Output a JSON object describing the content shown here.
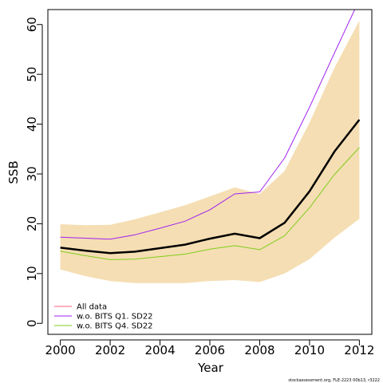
{
  "chart_data": {
    "type": "line",
    "xlabel": "Year",
    "ylabel": "SSB",
    "xlim": [
      1999.5,
      2012.5
    ],
    "ylim": [
      -2.2,
      63
    ],
    "x_ticks": [
      2000,
      2002,
      2004,
      2006,
      2008,
      2010,
      2012
    ],
    "y_ticks": [
      0,
      10,
      20,
      30,
      40,
      50,
      60
    ],
    "x": [
      2000,
      2001,
      2002,
      2003,
      2004,
      2005,
      2006,
      2007,
      2008,
      2009,
      2010,
      2011,
      2012
    ],
    "confidence_band": {
      "lower": [
        10.8,
        9.5,
        8.5,
        8.1,
        8.1,
        8.1,
        8.5,
        8.7,
        8.3,
        10.0,
        12.9,
        17.2,
        21.0
      ],
      "upper": [
        19.9,
        19.7,
        19.8,
        20.9,
        22.3,
        23.7,
        25.5,
        27.3,
        26.0,
        30.6,
        40.3,
        51.3,
        60.8
      ],
      "color": "#f5deb3"
    },
    "series": [
      {
        "name": "All data",
        "color": "#000000",
        "legend_color": "#ff5f7e",
        "values": [
          15.2,
          14.6,
          14.1,
          14.4,
          15.1,
          15.8,
          17.0,
          18.0,
          17.1,
          20.2,
          26.5,
          34.5,
          40.9
        ]
      },
      {
        "name": "w.o. BITS Q1. SD22",
        "color": "#a020f0",
        "values": [
          17.3,
          17.1,
          16.9,
          17.8,
          19.1,
          20.5,
          22.8,
          26.0,
          26.4,
          33.2,
          43.4,
          54.3,
          65.0
        ]
      },
      {
        "name": "w.o. BITS Q4. SD22",
        "color": "#7fcd1e",
        "values": [
          14.5,
          13.6,
          12.8,
          12.9,
          13.4,
          13.9,
          14.9,
          15.6,
          14.8,
          17.6,
          23.2,
          29.9,
          35.3
        ]
      }
    ],
    "legend_placement": "bottom-left",
    "grid": false
  },
  "footnote": "stockassessment.org, FLE-2223 00b13, r3222"
}
